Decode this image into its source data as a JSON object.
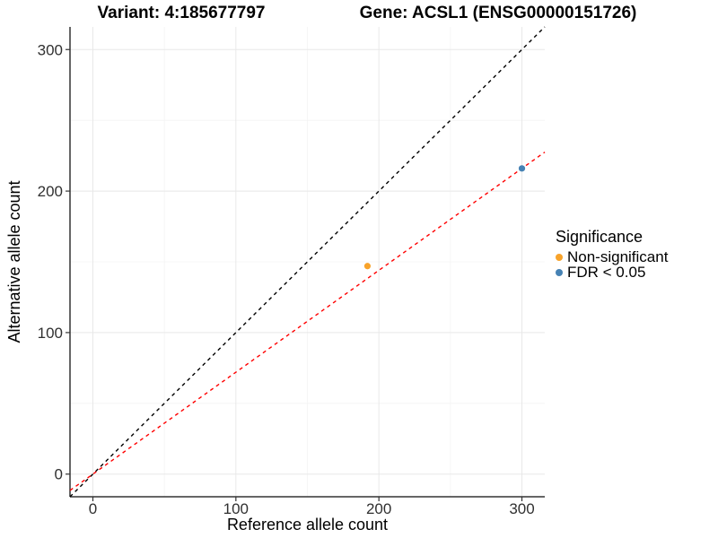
{
  "titles": {
    "left": "Variant: 4:185677797",
    "right": "Gene: ACSL1 (ENSG00000151726)"
  },
  "chart_data": {
    "type": "scatter",
    "xlabel": "Reference allele count",
    "ylabel": "Alternative allele count",
    "xlim": [
      -16,
      316
    ],
    "ylim": [
      -16,
      316
    ],
    "x_ticks": [
      0,
      100,
      200,
      300
    ],
    "y_ticks": [
      0,
      100,
      200,
      300
    ],
    "minor_ticks": [
      50,
      150,
      250
    ],
    "grid": "on",
    "background": "#FFFFFF",
    "points": [
      {
        "x": 192,
        "y": 147,
        "series": "Non-significant"
      },
      {
        "x": 300,
        "y": 216,
        "series": "FDR < 0.05"
      }
    ],
    "lines": [
      {
        "name": "identity-line",
        "slope": 1,
        "intercept": 0,
        "color": "#000000",
        "style": "dashed"
      },
      {
        "name": "fit-line",
        "slope": 0.72,
        "intercept": 0,
        "color": "#FF0000",
        "style": "dashed"
      }
    ],
    "legend": {
      "title": "Significance",
      "position": "right",
      "items": [
        {
          "label": "Non-significant",
          "color": "#F8A32B"
        },
        {
          "label": "FDR < 0.05",
          "color": "#4682B4"
        }
      ]
    },
    "colors": {
      "axis": "#333333",
      "tick_text": "#303030",
      "grid_major": "#E8E8E8",
      "grid_minor": "#F4F4F4"
    }
  }
}
